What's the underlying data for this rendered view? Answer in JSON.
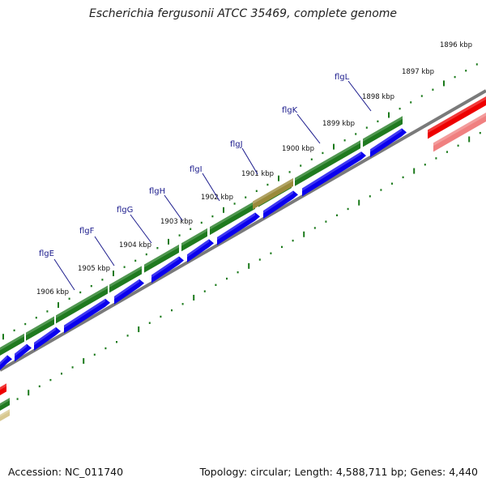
{
  "title": "Escherichia fergusonii ATCC 35469, complete genome",
  "footer": {
    "accession": "Accession: NC_011740",
    "summary": "Topology: circular; Length: 4,588,711 bp; Genes: 4,440"
  },
  "colors": {
    "forward_cds": "#1f7a1f",
    "reverse_cds": "#0a00ee",
    "rrna": "#ee0000",
    "backbone": "#7a7a7a",
    "ticks": "#1b7a1b",
    "labels": "#1a1a8c"
  },
  "kbp_labels": [
    "1896 kbp",
    "1897 kbp",
    "1898 kbp",
    "1899 kbp",
    "1900 kbp",
    "1901 kbp",
    "1902 kbp",
    "1903 kbp",
    "1904 kbp",
    "1905 kbp",
    "1906 kbp"
  ],
  "genes": [
    {
      "name": "flgE"
    },
    {
      "name": "flgF"
    },
    {
      "name": "flgG"
    },
    {
      "name": "flgH"
    },
    {
      "name": "flgI"
    },
    {
      "name": "flgJ"
    },
    {
      "name": "flgK"
    },
    {
      "name": "flgL"
    }
  ]
}
